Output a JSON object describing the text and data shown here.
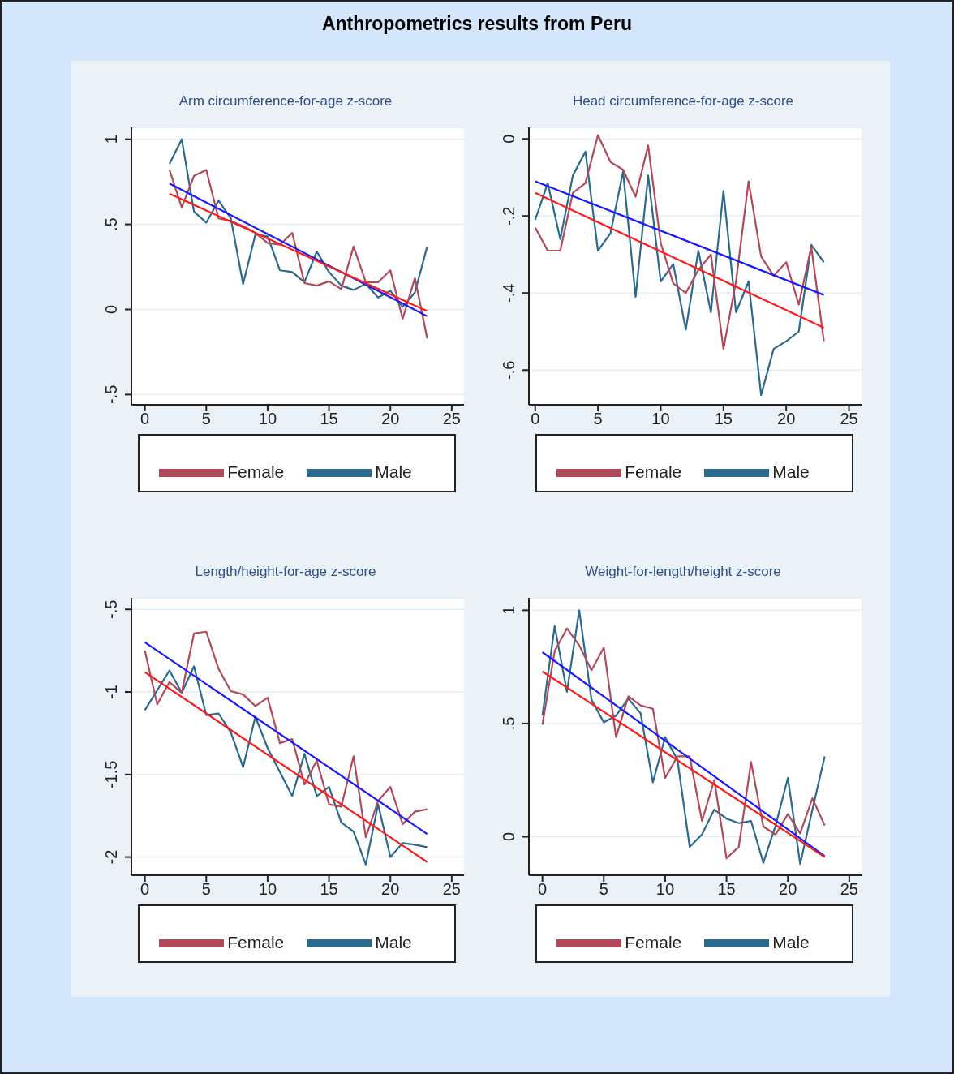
{
  "chart_data": [
    {
      "type": "line",
      "title": "Arm circumference-for-age z-score",
      "annotations": [
        "Anthropometrics results from Peru"
      ],
      "xlim": [
        -1.1,
        26
      ],
      "xticks": [
        0,
        5,
        10,
        15,
        20,
        25
      ],
      "ylim": [
        -0.56,
        1.07
      ],
      "yticks": [
        {
          "value": -0.5,
          "label": "-.5"
        },
        0,
        {
          "value": 0.5,
          "label": ".5"
        },
        1
      ],
      "grid": "y",
      "legend": "bottom",
      "series": [
        {
          "name": "Male",
          "color": "#2b6a8c",
          "x": [
            2,
            3,
            4,
            5,
            6,
            7,
            8,
            9,
            10,
            11,
            12,
            13,
            14,
            15,
            16,
            17,
            18,
            19,
            20,
            21,
            22,
            23
          ],
          "values": [
            0.855,
            1.0,
            0.575,
            0.51,
            0.64,
            0.535,
            0.15,
            0.44,
            0.43,
            0.23,
            0.22,
            0.16,
            0.34,
            0.22,
            0.14,
            0.115,
            0.15,
            0.07,
            0.11,
            0.015,
            0.1,
            0.37
          ]
        },
        {
          "name": "Female",
          "color": "#b04a5a",
          "x": [
            2,
            3,
            4,
            5,
            6,
            7,
            8,
            9,
            10,
            11,
            12,
            13,
            14,
            15,
            16,
            17,
            18,
            19,
            20,
            21,
            22,
            23
          ],
          "values": [
            0.82,
            0.6,
            0.785,
            0.82,
            0.535,
            0.52,
            0.49,
            0.45,
            0.39,
            0.38,
            0.45,
            0.155,
            0.14,
            0.165,
            0.12,
            0.37,
            0.16,
            0.16,
            0.23,
            -0.055,
            0.185,
            -0.17
          ]
        },
        {
          "color": "#1a1aff",
          "x": [
            2,
            23
          ],
          "values": [
            0.74,
            -0.04
          ]
        },
        {
          "color": "#ff1a1a",
          "x": [
            2,
            23
          ],
          "values": [
            0.68,
            -0.01
          ]
        }
      ]
    },
    {
      "type": "line",
      "title": "Head circumference-for-age z-score",
      "xlim": [
        -0.5,
        26
      ],
      "xticks": [
        0,
        5,
        10,
        15,
        20,
        25
      ],
      "ylim": [
        -0.69,
        0.03
      ],
      "yticks": [
        {
          "value": -0.6,
          "label": "-.6"
        },
        {
          "value": -0.4,
          "label": "-.4"
        },
        {
          "value": -0.2,
          "label": "-.2"
        },
        0
      ],
      "grid": "y",
      "legend": "bottom",
      "series": [
        {
          "name": "Male",
          "color": "#2b6a8c",
          "x": [
            0,
            1,
            2,
            3,
            4,
            5,
            6,
            7,
            8,
            9,
            10,
            11,
            12,
            13,
            14,
            15,
            16,
            17,
            18,
            19,
            20,
            21,
            22,
            23
          ],
          "values": [
            -0.21,
            -0.115,
            -0.26,
            -0.095,
            -0.033,
            -0.29,
            -0.245,
            -0.085,
            -0.41,
            -0.095,
            -0.37,
            -0.325,
            -0.495,
            -0.29,
            -0.45,
            -0.135,
            -0.45,
            -0.37,
            -0.665,
            -0.545,
            -0.525,
            -0.5,
            -0.275,
            -0.32
          ]
        },
        {
          "name": "Female",
          "color": "#b04a5a",
          "x": [
            0,
            1,
            2,
            3,
            4,
            5,
            6,
            7,
            8,
            9,
            10,
            11,
            12,
            13,
            14,
            15,
            16,
            17,
            18,
            19,
            20,
            21,
            22,
            23
          ],
          "values": [
            -0.23,
            -0.29,
            -0.29,
            -0.14,
            -0.115,
            0.01,
            -0.06,
            -0.08,
            -0.15,
            -0.017,
            -0.27,
            -0.375,
            -0.4,
            -0.34,
            -0.3,
            -0.545,
            -0.37,
            -0.11,
            -0.305,
            -0.355,
            -0.32,
            -0.43,
            -0.28,
            -0.525
          ]
        },
        {
          "color": "#1a1aff",
          "x": [
            0,
            23
          ],
          "values": [
            -0.11,
            -0.405
          ]
        },
        {
          "color": "#ff1a1a",
          "x": [
            0,
            23
          ],
          "values": [
            -0.14,
            -0.49
          ]
        }
      ]
    },
    {
      "type": "line",
      "title": "Length/height-for-age z-score",
      "xlim": [
        -1.1,
        26
      ],
      "xticks": [
        0,
        5,
        10,
        15,
        20,
        25
      ],
      "ylim": [
        -2.11,
        -0.43
      ],
      "yticks": [
        -2,
        {
          "value": -1.5,
          "label": "-1.5"
        },
        -1,
        {
          "value": -0.5,
          "label": "-.5"
        }
      ],
      "grid": "y",
      "legend": "bottom",
      "series": [
        {
          "name": "Male",
          "color": "#2b6a8c",
          "x": [
            0,
            1,
            2,
            3,
            4,
            5,
            6,
            7,
            8,
            9,
            10,
            11,
            12,
            13,
            14,
            15,
            16,
            17,
            18,
            19,
            20,
            21,
            22,
            23
          ],
          "values": [
            -1.11,
            -0.99,
            -0.87,
            -1.005,
            -0.845,
            -1.14,
            -1.13,
            -1.245,
            -1.455,
            -1.15,
            -1.34,
            -1.485,
            -1.63,
            -1.375,
            -1.63,
            -1.575,
            -1.79,
            -1.845,
            -2.045,
            -1.68,
            -2.0,
            -1.915,
            -1.925,
            -1.94
          ]
        },
        {
          "name": "Female",
          "color": "#b04a5a",
          "x": [
            0,
            1,
            2,
            3,
            4,
            5,
            6,
            7,
            8,
            9,
            10,
            11,
            12,
            13,
            14,
            15,
            16,
            17,
            18,
            19,
            20,
            21,
            22,
            23
          ],
          "values": [
            -0.75,
            -1.075,
            -0.94,
            -1.005,
            -0.645,
            -0.635,
            -0.86,
            -0.995,
            -1.015,
            -1.085,
            -1.035,
            -1.31,
            -1.285,
            -1.56,
            -1.415,
            -1.68,
            -1.695,
            -1.39,
            -1.88,
            -1.66,
            -1.575,
            -1.8,
            -1.725,
            -1.71
          ]
        },
        {
          "color": "#1a1aff",
          "x": [
            0,
            23
          ],
          "values": [
            -0.7,
            -1.86
          ]
        },
        {
          "color": "#ff1a1a",
          "x": [
            0,
            23
          ],
          "values": [
            -0.88,
            -2.03
          ]
        }
      ]
    },
    {
      "type": "line",
      "title": "Weight-for-length/height z-score",
      "xlim": [
        -1.1,
        26
      ],
      "xticks": [
        0,
        5,
        10,
        15,
        20,
        25
      ],
      "ylim": [
        -0.17,
        1.055
      ],
      "yticks": [
        0,
        {
          "value": 0.5,
          "label": ".5"
        },
        1
      ],
      "grid": "y",
      "legend": "bottom",
      "series": [
        {
          "name": "Male",
          "color": "#2b6a8c",
          "x": [
            0,
            1,
            2,
            3,
            4,
            5,
            6,
            7,
            8,
            9,
            10,
            11,
            12,
            13,
            14,
            15,
            16,
            17,
            18,
            19,
            20,
            21,
            22,
            23
          ],
          "values": [
            0.535,
            0.93,
            0.64,
            1.0,
            0.605,
            0.505,
            0.535,
            0.61,
            0.545,
            0.24,
            0.44,
            0.34,
            -0.045,
            0.01,
            0.12,
            0.08,
            0.06,
            0.07,
            -0.115,
            0.05,
            0.26,
            -0.12,
            0.12,
            0.355
          ]
        },
        {
          "name": "Female",
          "color": "#b04a5a",
          "x": [
            0,
            1,
            2,
            3,
            4,
            5,
            6,
            7,
            8,
            9,
            10,
            11,
            12,
            13,
            14,
            15,
            16,
            17,
            18,
            19,
            20,
            21,
            22,
            23
          ],
          "values": [
            0.495,
            0.82,
            0.92,
            0.845,
            0.735,
            0.835,
            0.44,
            0.62,
            0.58,
            0.565,
            0.26,
            0.355,
            0.355,
            0.07,
            0.25,
            -0.095,
            -0.045,
            0.33,
            0.045,
            0.01,
            0.1,
            0.015,
            0.17,
            0.05
          ]
        },
        {
          "color": "#1a1aff",
          "x": [
            0,
            23
          ],
          "values": [
            0.815,
            -0.085
          ]
        },
        {
          "color": "#ff1a1a",
          "x": [
            0,
            23
          ],
          "values": [
            0.73,
            -0.09
          ]
        }
      ]
    }
  ]
}
